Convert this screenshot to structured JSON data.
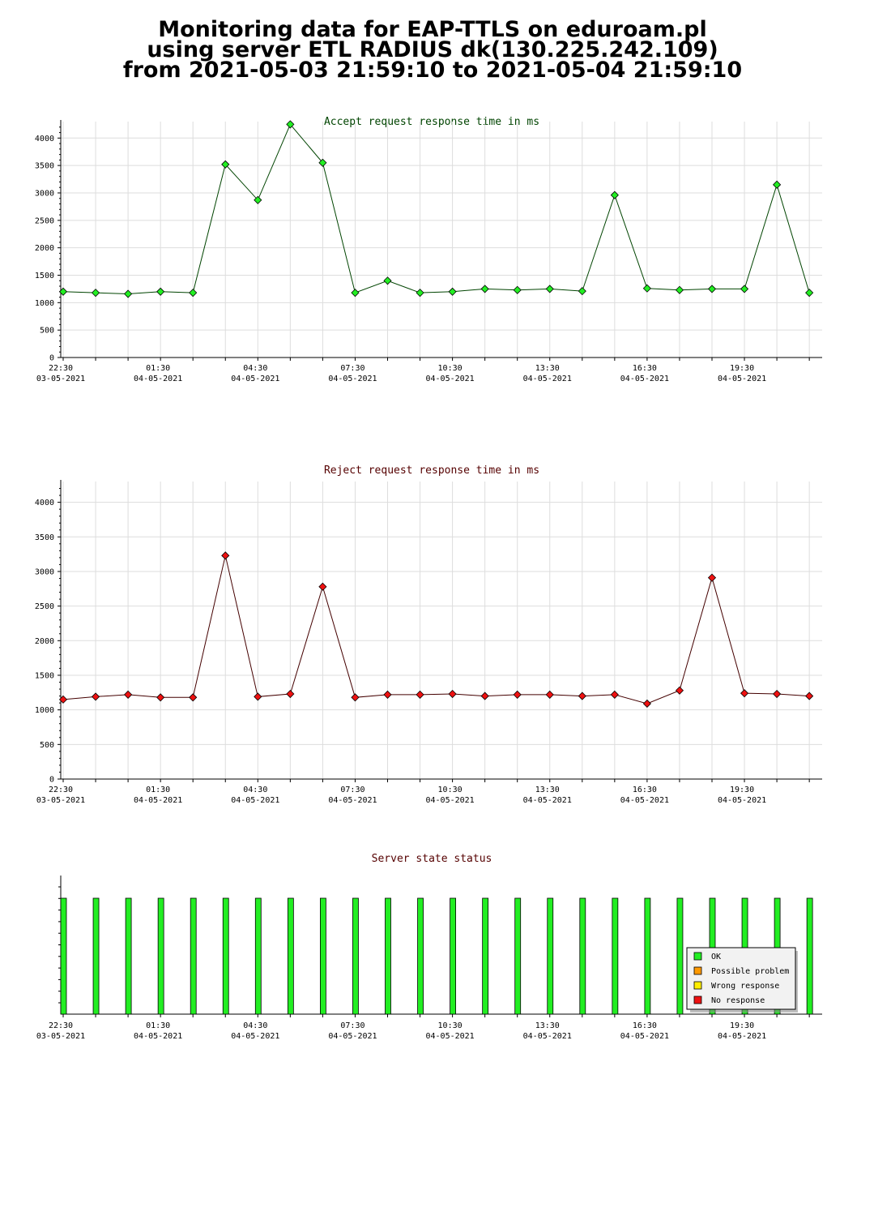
{
  "header": {
    "line1": "Monitoring data for EAP-TTLS on eduroam.pl",
    "line2": "using server ETL RADIUS dk(130.225.242.109)",
    "line3": "from 2021-05-03 21:59:10 to 2021-05-04 21:59:10"
  },
  "colors": {
    "accept_marker": "#22ee22",
    "accept_line": "#004400",
    "accept_title": "#004400",
    "reject_marker": "#ee1111",
    "reject_line": "#440000",
    "reject_title": "#550000",
    "status_title": "#550000",
    "ok": "#22ee22",
    "possible_problem": "#ff9900",
    "wrong_response": "#ffee00",
    "no_response": "#ee1111",
    "grid": "#dddddd"
  },
  "chart_data": [
    {
      "type": "line",
      "title": "Accept request response time in ms",
      "xlabel": "",
      "ylabel": "",
      "ylim": [
        0,
        4300
      ],
      "yticks": [
        "0",
        "500",
        "1000",
        "1500",
        "2000",
        "2500",
        "3000",
        "3500",
        "4000"
      ],
      "xticks": [
        {
          "time": "22:30",
          "date": "03-05-2021"
        },
        {
          "time": "01:30",
          "date": "04-05-2021"
        },
        {
          "time": "04:30",
          "date": "04-05-2021"
        },
        {
          "time": "07:30",
          "date": "04-05-2021"
        },
        {
          "time": "10:30",
          "date": "04-05-2021"
        },
        {
          "time": "13:30",
          "date": "04-05-2021"
        },
        {
          "time": "16:30",
          "date": "04-05-2021"
        },
        {
          "time": "19:30",
          "date": "04-05-2021"
        }
      ],
      "grid": true,
      "values": [
        1200,
        1180,
        1160,
        1200,
        1180,
        3520,
        2870,
        4250,
        3550,
        1180,
        1400,
        1180,
        1200,
        1250,
        1230,
        1250,
        1210,
        2960,
        1260,
        1230,
        1250,
        1250,
        3150,
        1180
      ]
    },
    {
      "type": "line",
      "title": "Reject request response time in ms",
      "xlabel": "",
      "ylabel": "",
      "ylim": [
        0,
        4300
      ],
      "yticks": [
        "0",
        "500",
        "1000",
        "1500",
        "2000",
        "2500",
        "3000",
        "3500",
        "4000"
      ],
      "xticks": [
        {
          "time": "22:30",
          "date": "03-05-2021"
        },
        {
          "time": "01:30",
          "date": "04-05-2021"
        },
        {
          "time": "04:30",
          "date": "04-05-2021"
        },
        {
          "time": "07:30",
          "date": "04-05-2021"
        },
        {
          "time": "10:30",
          "date": "04-05-2021"
        },
        {
          "time": "13:30",
          "date": "04-05-2021"
        },
        {
          "time": "16:30",
          "date": "04-05-2021"
        },
        {
          "time": "19:30",
          "date": "04-05-2021"
        }
      ],
      "grid": true,
      "values": [
        1150,
        1190,
        1220,
        1180,
        1180,
        3230,
        1190,
        1230,
        2780,
        1180,
        1220,
        1220,
        1230,
        1200,
        1220,
        1220,
        1200,
        1220,
        1090,
        1280,
        2910,
        1240,
        1230,
        1200
      ]
    },
    {
      "type": "bar",
      "title": "Server state status",
      "xticks": [
        {
          "time": "22:30",
          "date": "03-05-2021"
        },
        {
          "time": "01:30",
          "date": "04-05-2021"
        },
        {
          "time": "04:30",
          "date": "04-05-2021"
        },
        {
          "time": "07:30",
          "date": "04-05-2021"
        },
        {
          "time": "10:30",
          "date": "04-05-2021"
        },
        {
          "time": "13:30",
          "date": "04-05-2021"
        },
        {
          "time": "16:30",
          "date": "04-05-2021"
        },
        {
          "time": "19:30",
          "date": "04-05-2021"
        }
      ],
      "states": [
        "OK",
        "OK",
        "OK",
        "OK",
        "OK",
        "OK",
        "OK",
        "OK",
        "OK",
        "OK",
        "OK",
        "OK",
        "OK",
        "OK",
        "OK",
        "OK",
        "OK",
        "OK",
        "OK",
        "OK",
        "OK",
        "OK",
        "OK",
        "OK"
      ],
      "legend_position": "bottom-right",
      "legend": [
        {
          "label": "OK",
          "color": "#22ee22"
        },
        {
          "label": "Possible problem",
          "color": "#ff9900"
        },
        {
          "label": "Wrong response",
          "color": "#ffee00"
        },
        {
          "label": "No response",
          "color": "#ee1111"
        }
      ]
    }
  ]
}
